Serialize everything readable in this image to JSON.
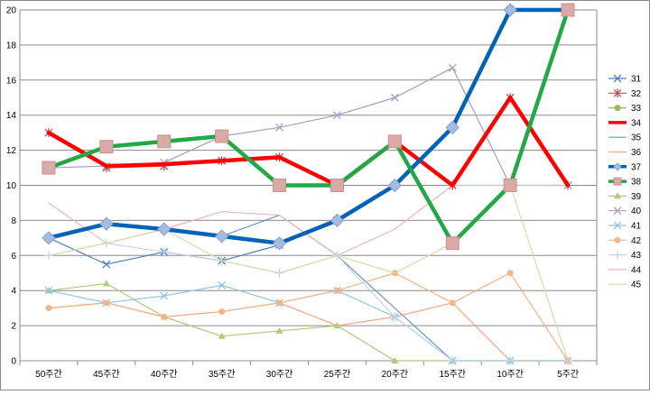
{
  "chart_data": {
    "type": "line",
    "title": "",
    "xlabel": "",
    "ylabel": "",
    "categories": [
      "50주간",
      "45주간",
      "40주간",
      "35주간",
      "30주간",
      "25주간",
      "20주간",
      "15주간",
      "10주간",
      "5주간"
    ],
    "ylim": [
      0,
      20
    ],
    "yticks": [
      0,
      2,
      4,
      6,
      8,
      10,
      12,
      14,
      16,
      18,
      20
    ],
    "grid": true,
    "legend_position": "right",
    "series": [
      {
        "name": "31",
        "values": [
          7,
          5.5,
          6.2,
          5.7,
          6.6,
          8,
          10,
          13.3,
          20,
          20
        ],
        "color": "#4f81bd",
        "marker": "x",
        "width": 1.2
      },
      {
        "name": "32",
        "values": [
          13,
          11,
          11.1,
          11.4,
          11.6,
          10,
          12.5,
          10,
          15,
          10
        ],
        "color": "#c0504d",
        "marker": "asterisk",
        "width": 1.2
      },
      {
        "name": "33",
        "values": [
          11,
          12.2,
          12.5,
          12.8,
          10,
          10,
          12.5,
          6.7,
          10,
          20
        ],
        "color": "#9bbb59",
        "marker": "circle",
        "width": 1.2
      },
      {
        "name": "34",
        "values": [
          13,
          11.1,
          11.2,
          11.4,
          11.6,
          10,
          12.5,
          10,
          15,
          10
        ],
        "color": "#ff0000",
        "marker": "none",
        "width": 4.5
      },
      {
        "name": "35",
        "values": [
          7,
          7.8,
          7.5,
          7.1,
          8.3,
          6,
          3,
          0,
          0,
          0
        ],
        "color": "#6699cc",
        "marker": "none",
        "width": 1.2
      },
      {
        "name": "36",
        "values": [
          3,
          3.3,
          2.5,
          2.8,
          3.3,
          2,
          2.5,
          3.3,
          0,
          0
        ],
        "color": "#f4a582",
        "marker": "none",
        "width": 1.2
      },
      {
        "name": "37",
        "values": [
          7,
          7.8,
          7.5,
          7.1,
          6.7,
          8,
          10,
          13.3,
          20,
          20
        ],
        "color": "#0063b8",
        "marker": "diamond",
        "width": 4.5
      },
      {
        "name": "38",
        "values": [
          11,
          12.2,
          12.5,
          12.8,
          10,
          10,
          12.5,
          6.7,
          10,
          20
        ],
        "color": "#22a844",
        "marker": "square",
        "width": 4.5
      },
      {
        "name": "39",
        "values": [
          4,
          4.4,
          2.5,
          1.4,
          1.7,
          2,
          0,
          0,
          0,
          0
        ],
        "color": "#aecb7a",
        "marker": "triangle",
        "width": 1.2
      },
      {
        "name": "40",
        "values": [
          11,
          11.1,
          11.3,
          12.8,
          13.3,
          14,
          15,
          16.7,
          10,
          10
        ],
        "color": "#a99bc4",
        "marker": "x",
        "width": 1.2
      },
      {
        "name": "41",
        "values": [
          4,
          3.3,
          3.7,
          4.3,
          3.3,
          4,
          2.5,
          0,
          0,
          0
        ],
        "color": "#8ec3e6",
        "marker": "x",
        "width": 1.2
      },
      {
        "name": "42",
        "values": [
          3,
          3.3,
          2.5,
          2.8,
          3.3,
          4,
          5,
          3.3,
          5,
          0
        ],
        "color": "#f6b384",
        "marker": "circle",
        "width": 1.2
      },
      {
        "name": "43",
        "values": [
          6,
          6.7,
          6.2,
          5.7,
          5,
          6,
          2.5,
          0,
          0,
          0
        ],
        "color": "#c5d3e8",
        "marker": "plus",
        "width": 1.2
      },
      {
        "name": "44",
        "values": [
          9,
          6.7,
          7.5,
          8.5,
          8.3,
          6,
          7.5,
          10,
          10,
          10
        ],
        "color": "#ecb6b6",
        "marker": "none",
        "width": 1.2
      },
      {
        "name": "45",
        "values": [
          6,
          6.7,
          7.5,
          5.7,
          5,
          6,
          5,
          6.7,
          10,
          0
        ],
        "color": "#cfe0a8",
        "marker": "none",
        "width": 1.2
      }
    ]
  }
}
